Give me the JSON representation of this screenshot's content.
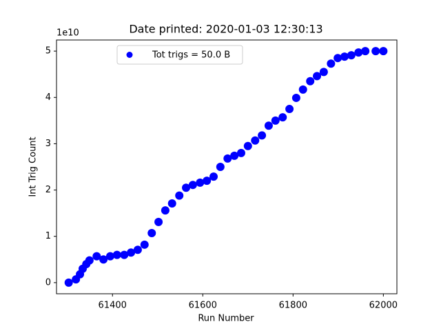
{
  "chart_data": {
    "type": "scatter",
    "title": "Date printed: 2020-01-03 12:30:13",
    "x_label": "Run Number",
    "y_label": "Int Trig Count",
    "y_offset_label": "1e10",
    "xlim": [
      61276,
      62030
    ],
    "ylim": [
      -0.24,
      5.24
    ],
    "xticks": [
      61400,
      61600,
      61800,
      62000
    ],
    "yticks": [
      0,
      1,
      2,
      3,
      4,
      5
    ],
    "legend_position": "upper center",
    "series": [
      {
        "name": "Tot trigs = 50.0 B",
        "color": "#0000ff",
        "x": [
          61303,
          61319,
          61328,
          61334,
          61342,
          61349,
          61365,
          61380,
          61395,
          61410,
          61426,
          61441,
          61456,
          61471,
          61487,
          61502,
          61517,
          61532,
          61548,
          61563,
          61578,
          61594,
          61609,
          61624,
          61639,
          61655,
          61670,
          61685,
          61700,
          61716,
          61731,
          61746,
          61761,
          61777,
          61792,
          61807,
          61822,
          61838,
          61853,
          61868,
          61884,
          61899,
          61914,
          61929,
          61945,
          61960,
          61983,
          62000
        ],
        "values": [
          0,
          0.07,
          0.18,
          0.3,
          0.4,
          0.48,
          0.57,
          0.5,
          0.57,
          0.6,
          0.6,
          0.65,
          0.71,
          0.82,
          1.07,
          1.31,
          1.56,
          1.71,
          1.88,
          2.05,
          2.11,
          2.16,
          2.2,
          2.29,
          2.5,
          2.68,
          2.74,
          2.8,
          2.95,
          3.07,
          3.18,
          3.39,
          3.5,
          3.57,
          3.75,
          3.99,
          4.17,
          4.35,
          4.46,
          4.55,
          4.73,
          4.85,
          4.88,
          4.91,
          4.97,
          5.0,
          5.0,
          5.0
        ]
      }
    ]
  }
}
